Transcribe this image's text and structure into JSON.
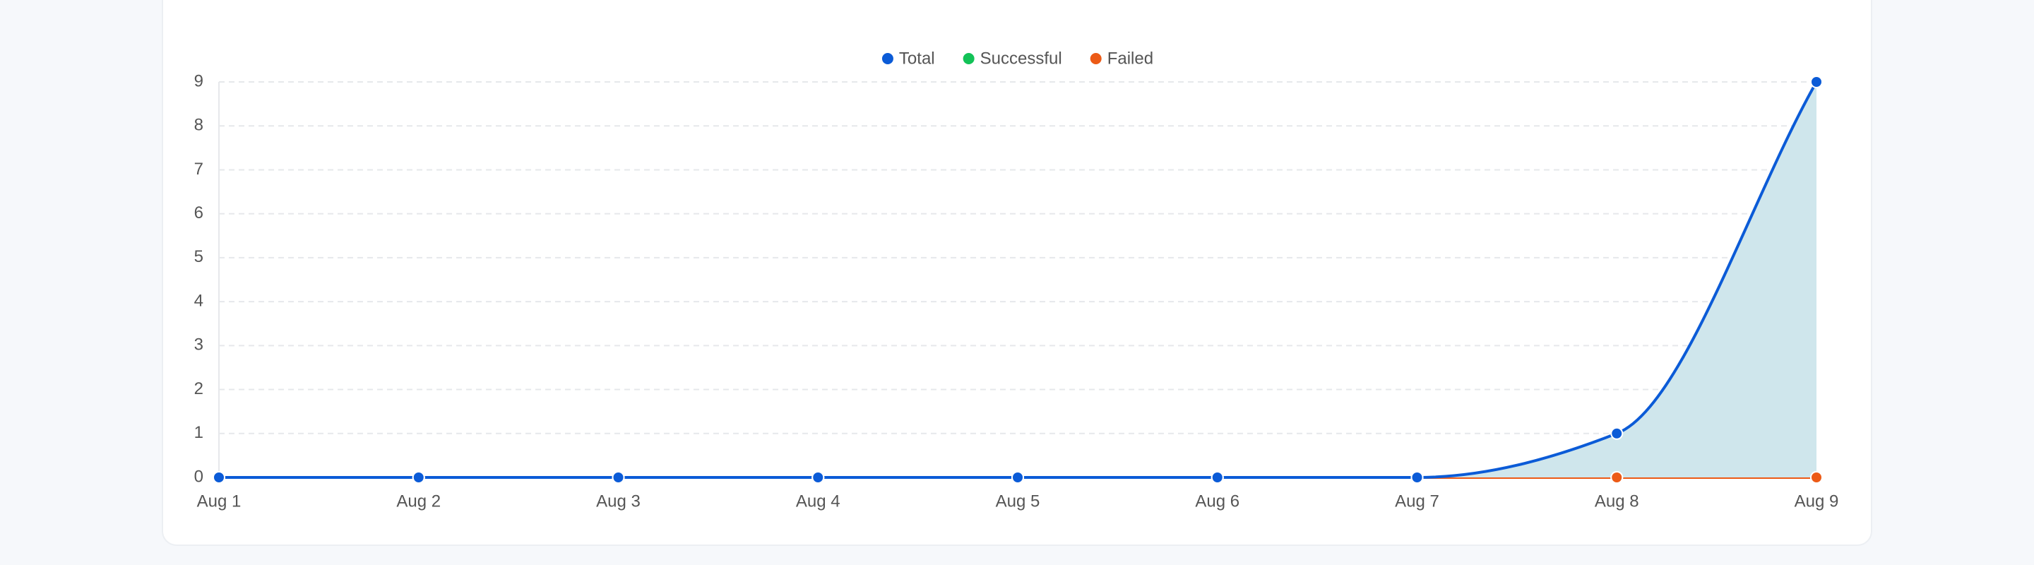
{
  "chart_data": {
    "type": "line",
    "categories": [
      "Aug 1",
      "Aug 2",
      "Aug 3",
      "Aug 4",
      "Aug 5",
      "Aug 6",
      "Aug 7",
      "Aug 8",
      "Aug 9"
    ],
    "series": [
      {
        "name": "Total",
        "color": "#0b5bd7",
        "values": [
          0,
          0,
          0,
          0,
          0,
          0,
          0,
          1,
          9
        ],
        "fill": "#cfe6ec"
      },
      {
        "name": "Successful",
        "color": "#12c257",
        "values": [
          0,
          0,
          0,
          0,
          0,
          0,
          0,
          0,
          0
        ]
      },
      {
        "name": "Failed",
        "color": "#ec5a16",
        "values": [
          0,
          0,
          0,
          0,
          0,
          0,
          0,
          0,
          0
        ]
      }
    ],
    "ylim": [
      0,
      9
    ],
    "yticks": [
      0,
      1,
      2,
      3,
      4,
      5,
      6,
      7,
      8,
      9
    ],
    "grid": true,
    "legend": "top"
  }
}
